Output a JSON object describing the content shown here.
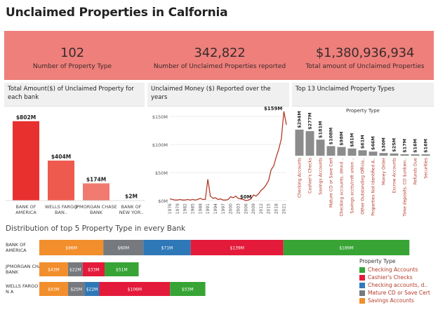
{
  "header": {
    "title": "Unclaimed Properties in Calfornia"
  },
  "kpis": [
    {
      "value": "102",
      "label": "Number of Property Type"
    },
    {
      "value": "342,822",
      "label": "Number of Unclaimed Properties reported"
    },
    {
      "value": "$1,380,936,934",
      "label": "Total amount of Unclaimed Properties"
    }
  ],
  "colors": {
    "kpi_band": "#ee7f7b",
    "bank_bar_1": "#e8312f",
    "bank_bar_2": "#ef5a4f",
    "bank_bar_3": "#f07a6f",
    "trend_line": "#b33b2a",
    "type_bar": "#8c8c8c",
    "type_label": "#b33b2a"
  },
  "panels": {
    "bank_totals_title": "Total Amount($) of Unclaimed Property for each bank",
    "trend_title": "Unclaimed Money ($) Reported over the years",
    "types_title": "Top 13 Unclaimed Property Types"
  },
  "bottom": {
    "title": "Distribution of top 5 Property Type in every Bank"
  },
  "chart_data": [
    {
      "id": "bank_totals",
      "type": "bar",
      "title": "Total Amount($) of Unclaimed Property for each bank",
      "categories": [
        "BANK OF AMERICA",
        "WELLS FARGO BAN..",
        "JPMORGAN CHASE BANK",
        "BANK OF NEW YOR.."
      ],
      "values": [
        802,
        404,
        174,
        2
      ],
      "value_labels": [
        "$802M",
        "$404M",
        "$174M",
        "$2M"
      ],
      "unit": "$M",
      "ylim": [
        0,
        850
      ]
    },
    {
      "id": "trend",
      "type": "line",
      "title": "Unclaimed Money ($) Reported over the years",
      "x": [
        1976,
        1977,
        1978,
        1979,
        1980,
        1981,
        1982,
        1983,
        1984,
        1985,
        1986,
        1987,
        1988,
        1989,
        1990,
        1991,
        1992,
        1993,
        1994,
        1995,
        1996,
        1997,
        1998,
        1999,
        2000,
        2001,
        2002,
        2003,
        2004,
        2005,
        2006,
        2007,
        2008,
        2009,
        2010,
        2011,
        2012,
        2013,
        2014,
        2015,
        2016,
        2017,
        2018,
        2019,
        2020,
        2021,
        2022
      ],
      "values": [
        3,
        2,
        1,
        1,
        2,
        1,
        1,
        2,
        1,
        2,
        1,
        2,
        4,
        2,
        2,
        38,
        8,
        4,
        5,
        2,
        3,
        1,
        1,
        2,
        7,
        5,
        8,
        4,
        3,
        2,
        0,
        1,
        3,
        10,
        8,
        12,
        18,
        22,
        28,
        36,
        55,
        62,
        78,
        92,
        110,
        159,
        135
      ],
      "x_ticks": [
        "1976",
        "1979",
        "1982",
        "1985",
        "1988",
        "1991",
        "1994",
        "1997",
        "2000",
        "2003",
        "2006",
        "2009",
        "2012",
        "2015",
        "2018",
        "2021"
      ],
      "y_ticks": [
        "$0M",
        "$50M",
        "$100M",
        "$150M"
      ],
      "ylim": [
        0,
        160
      ],
      "annotations": [
        "$159M",
        "$0M"
      ]
    },
    {
      "id": "property_types",
      "type": "bar",
      "title": "Top 13 Unclaimed Property Types",
      "legend_title": "Property Type",
      "categories": [
        "Checking Accounts",
        "Cashier's Checks",
        "Savings Accounts",
        "Mature CD or Save Cert",
        "Checking accounts, dmnd ..",
        "Savings accts/crdt union ..",
        "Other Outstanding Officia..",
        "Properties Not Identified A..",
        "Money Order",
        "Escrow Accounts",
        "Time deposits, CD $unkwn..",
        "Refunds Due",
        "Securities"
      ],
      "values": [
        294,
        277,
        181,
        108,
        98,
        81,
        61,
        46,
        30,
        25,
        17,
        16,
        16
      ],
      "value_labels": [
        "$294M",
        "$277M",
        "$181M",
        "$108M",
        "$98M",
        "$81M",
        "$61M",
        "$46M",
        "$30M",
        "$25M",
        "$17M",
        "$16M",
        "$16M"
      ],
      "ylim": [
        0,
        300
      ]
    },
    {
      "id": "distribution",
      "type": "bar",
      "stacked": true,
      "orientation": "horizontal",
      "title": "Distribution of top 5 Property Type in every Bank",
      "legend_title": "Property Type",
      "banks": [
        "BANK OF AMERICA",
        "JPMORGAN CHASE BANK",
        "WELLS FARGO BANK N A"
      ],
      "series": [
        {
          "name": "Savings Accounts",
          "color": "#f28e2b",
          "values": [
            96,
            43,
            43
          ],
          "labels": [
            "$96M",
            "$43M",
            "$43M"
          ]
        },
        {
          "name": "Mature CD or Save Cert",
          "color": "#76797d",
          "values": [
            60,
            22,
            25
          ],
          "labels": [
            "$60M",
            "$22M",
            "$25M"
          ]
        },
        {
          "name": "Checking accounts, d..",
          "color": "#2f78b8",
          "values": [
            71,
            0,
            22
          ],
          "labels": [
            "$71M",
            "",
            "$22M"
          ]
        },
        {
          "name": "Cashier's Checks",
          "color": "#e41a3a",
          "values": [
            139,
            33,
            106
          ],
          "labels": [
            "$139M",
            "$33M",
            "$106M"
          ]
        },
        {
          "name": "Checking Accounts",
          "color": "#37a435",
          "values": [
            189,
            51,
            53
          ],
          "labels": [
            "$189M",
            "$51M",
            "$53M"
          ]
        }
      ],
      "legend_order": [
        "Checking Accounts",
        "Cashier's Checks",
        "Checking accounts, d..",
        "Mature CD or Save Cert",
        "Savings Accounts"
      ]
    }
  ]
}
